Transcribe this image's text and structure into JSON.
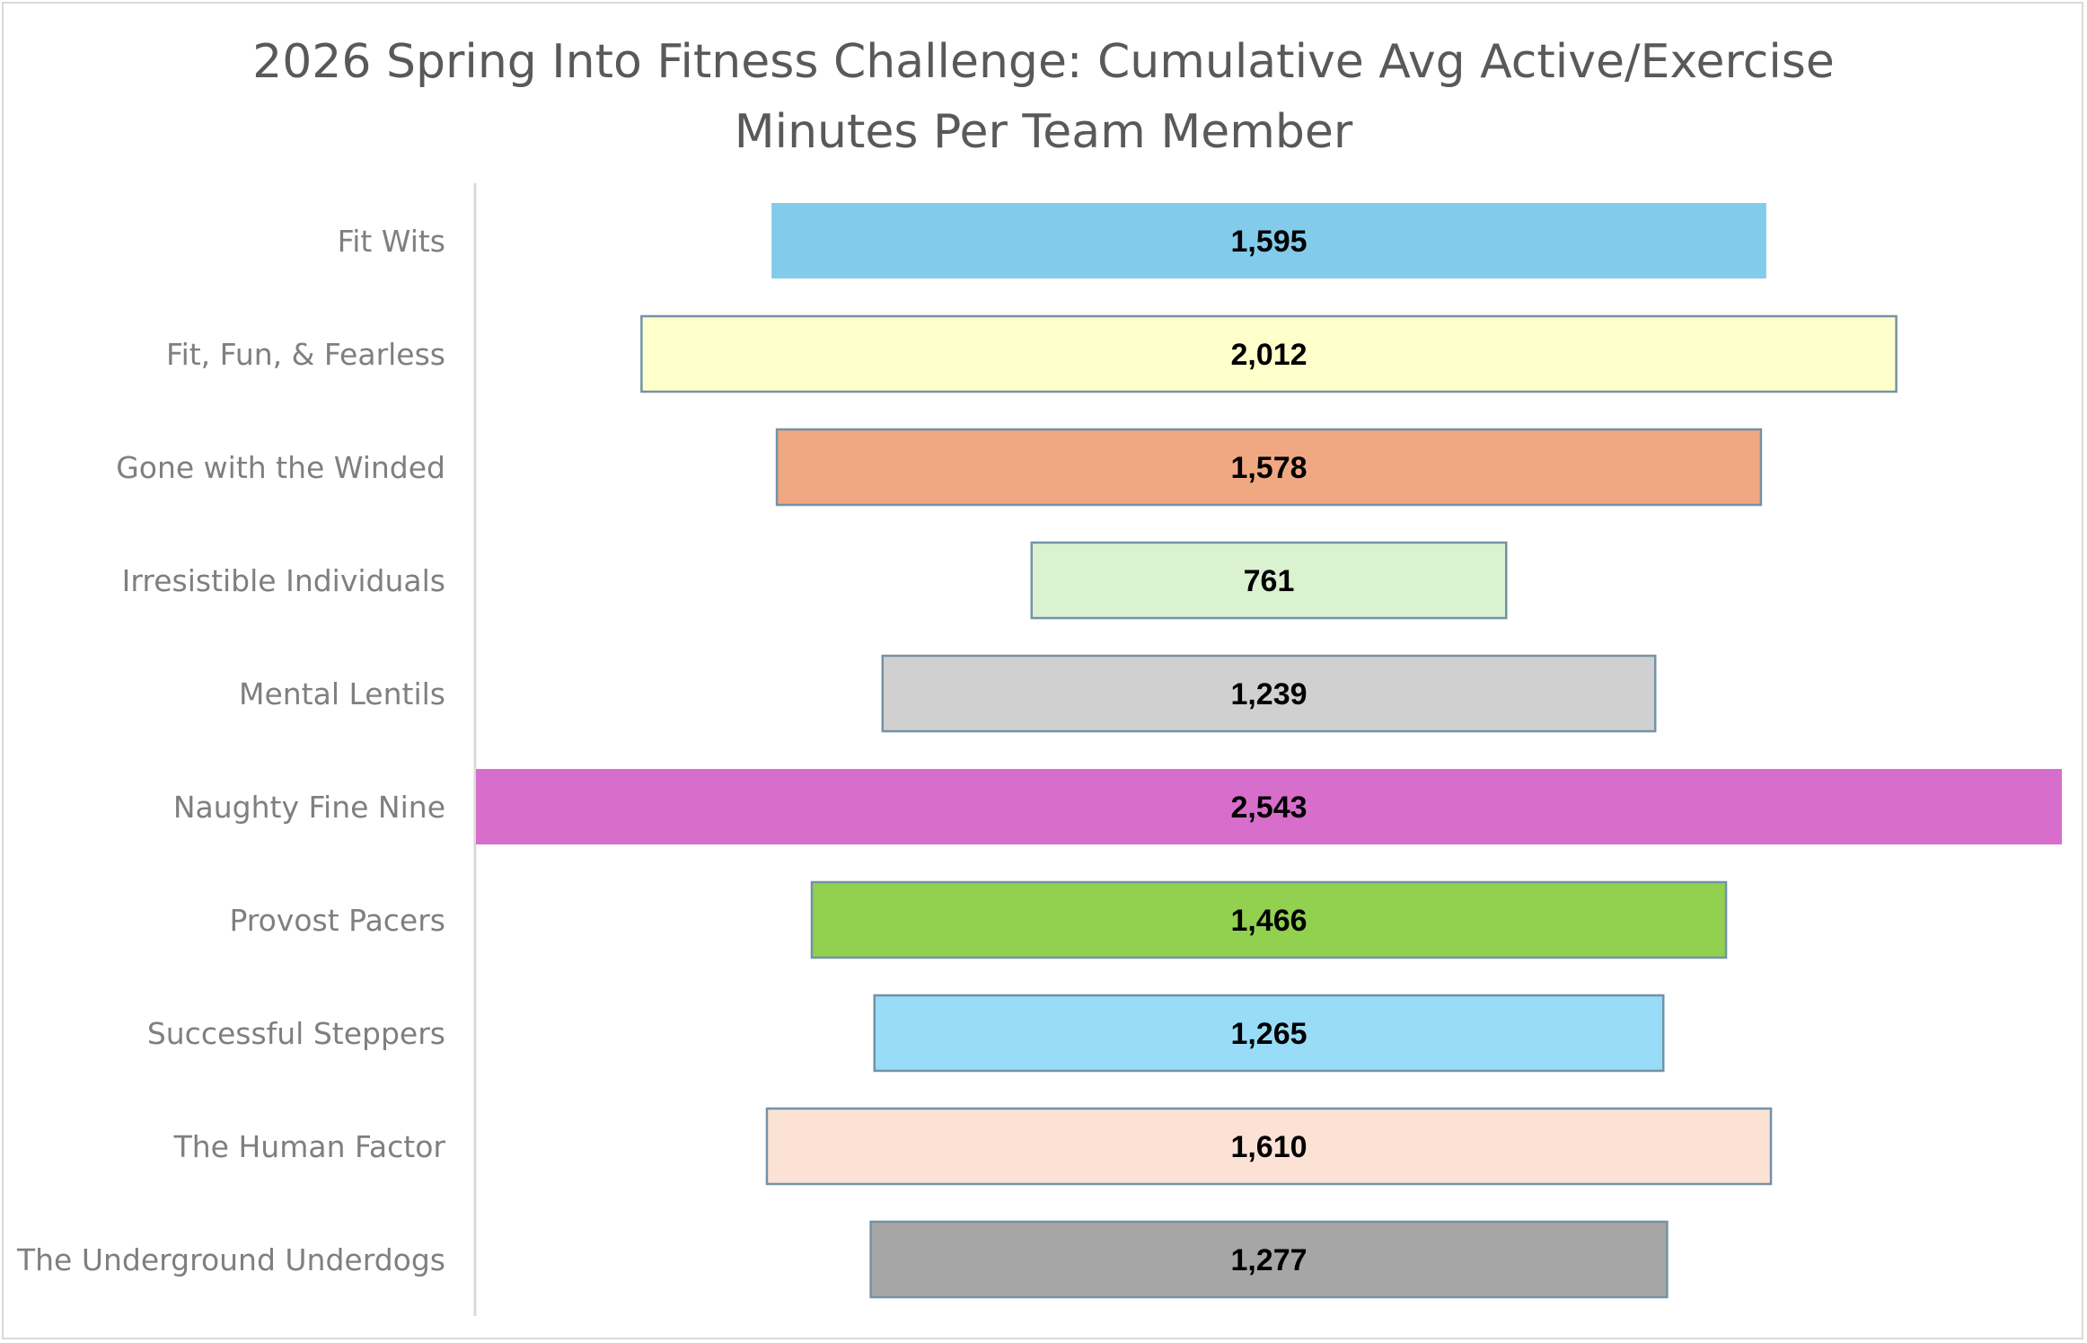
{
  "chart_data": {
    "type": "bar",
    "subtype": "funnel",
    "title_lines": [
      "2026 Spring Into Fitness Challenge: Cumulative Avg Active/Exercise",
      "Minutes Per Team Member"
    ],
    "title": "2026 Spring Into Fitness Challenge: Cumulative Avg Active/Exercise Minutes Per Team Member",
    "categories": [
      "Fit Wits",
      "Fit, Fun, & Fearless",
      "Gone with the Winded",
      "Irresistible Individuals",
      "Mental Lentils",
      "Naughty Fine Nine",
      "Provost Pacers",
      "Successful Steppers",
      "The Human Factor",
      "The Underground Underdogs"
    ],
    "values": [
      1595,
      2012,
      1578,
      761,
      1239,
      2543,
      1466,
      1265,
      1610,
      1277
    ],
    "value_labels": [
      "1,595",
      "2,012",
      "1,578",
      "761",
      "1,239",
      "2,543",
      "1,466",
      "1,265",
      "1,610",
      "1,277"
    ],
    "colors": [
      "#83CBEB",
      "#FFFFCC",
      "#F0A883",
      "#DAF2D0",
      "#D0D0D0",
      "#D86ECC",
      "#92D050",
      "#99DCF8",
      "#FBE2D5",
      "#A6A6A6"
    ],
    "outlined": [
      false,
      true,
      true,
      true,
      true,
      false,
      true,
      true,
      true,
      true
    ],
    "outline_color": "#7392A6",
    "xlabel": "",
    "ylabel": "",
    "grid": false,
    "legend": "none"
  }
}
